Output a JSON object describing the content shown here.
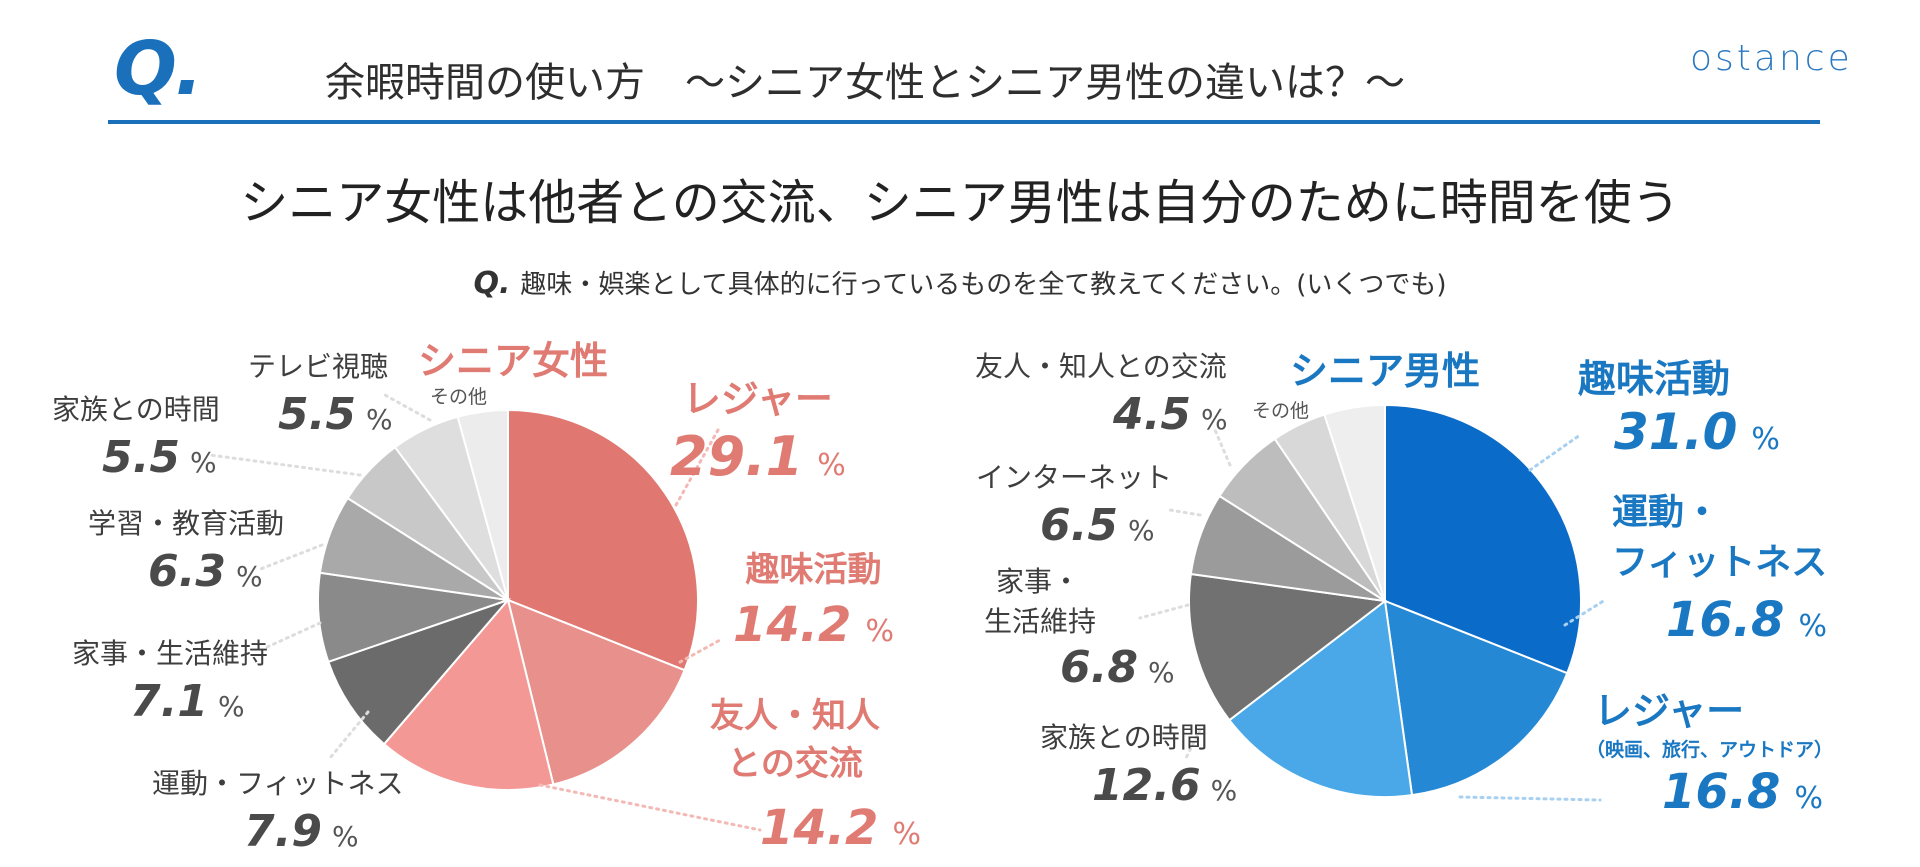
{
  "header": {
    "q_mark": "Q.",
    "title": "余暇時間の使い方　〜シニア女性とシニア男性の違いは？〜",
    "logo": "ostance"
  },
  "headline": "シニア女性は他者との交流、シニア男性は自分のために時間を使う",
  "question": {
    "q_mark": "Q.",
    "text": "趣味・娯楽として具体的に行っているものを全て教えてください。(いくつでも)"
  },
  "colors": {
    "accent_blue": "#1a70bb",
    "female_red": "#e07b74",
    "male_blue": "#1a78c2",
    "gray_text": "#4a4a4a"
  },
  "chart_data": [
    {
      "type": "pie",
      "title": "シニア女性",
      "unit": "%",
      "slices": [
        {
          "label": "レジャー",
          "value": 29.1,
          "color": "#e07770"
        },
        {
          "label": "趣味活動",
          "value": 14.2,
          "color": "#e8918c"
        },
        {
          "label": "友人・知人との交流",
          "value": 14.2,
          "color": "#f39894"
        },
        {
          "label": "運動・フィットネス",
          "value": 7.9,
          "color": "#6b6b6b"
        },
        {
          "label": "家事・生活維持",
          "value": 7.1,
          "color": "#8a8a8a"
        },
        {
          "label": "学習・教育活動",
          "value": 6.3,
          "color": "#a9a9a9"
        },
        {
          "label": "家族との時間",
          "value": 5.5,
          "color": "#c8c8c8"
        },
        {
          "label": "テレビ視聴",
          "value": 5.5,
          "color": "#dedede"
        },
        {
          "label": "その他",
          "value": 4.0,
          "color": "#ececec"
        }
      ]
    },
    {
      "type": "pie",
      "title": "シニア男性",
      "unit": "%",
      "slices": [
        {
          "label": "趣味活動",
          "value": 31.0,
          "color": "#0a6bc8"
        },
        {
          "label": "運動・フィットネス",
          "value": 16.8,
          "color": "#2488d4"
        },
        {
          "label": "レジャー",
          "value": 16.8,
          "color": "#4aa8e8"
        },
        {
          "label": "家族との時間",
          "value": 12.6,
          "color": "#717171"
        },
        {
          "label": "家事・生活維持",
          "value": 6.8,
          "color": "#9b9b9b"
        },
        {
          "label": "インターネット",
          "value": 6.5,
          "color": "#bdbdbd"
        },
        {
          "label": "友人・知人との交流",
          "value": 4.5,
          "color": "#d8d8d8"
        },
        {
          "label": "その他",
          "value": 5.0,
          "color": "#eeeeee"
        }
      ]
    }
  ],
  "labels": {
    "female": {
      "series": "シニア女性",
      "leisure": {
        "name": "レジャー",
        "value": "29.1",
        "unit": "%"
      },
      "hobby": {
        "name": "趣味活動",
        "value": "14.2",
        "unit": "%"
      },
      "friends": {
        "name_1": "友人・知人",
        "name_2": "との交流",
        "value": "14.2",
        "unit": "%"
      },
      "exercise": {
        "name": "運動・フィットネス",
        "value": "7.9",
        "unit": "%"
      },
      "housework": {
        "name": "家事・生活維持",
        "value": "7.1",
        "unit": "%"
      },
      "learning": {
        "name": "学習・教育活動",
        "value": "6.3",
        "unit": "%"
      },
      "family": {
        "name": "家族との時間",
        "value": "5.5",
        "unit": "%"
      },
      "tv": {
        "name": "テレビ視聴",
        "value": "5.5",
        "unit": "%"
      },
      "other": {
        "name": "その他"
      }
    },
    "male": {
      "series": "シニア男性",
      "hobby": {
        "name": "趣味活動",
        "value": "31.0",
        "unit": "%"
      },
      "exercise": {
        "name_1": "運動・",
        "name_2": "フィットネス",
        "value": "16.8",
        "unit": "%"
      },
      "leisure": {
        "name": "レジャー",
        "note": "（映画、旅行、アウトドア）",
        "value": "16.8",
        "unit": "%"
      },
      "family": {
        "name": "家族との時間",
        "value": "12.6",
        "unit": "%"
      },
      "housework": {
        "name_1": "家事・",
        "name_2": "生活維持",
        "value": "6.8",
        "unit": "%"
      },
      "internet": {
        "name": "インターネット",
        "value": "6.5",
        "unit": "%"
      },
      "friends": {
        "name": "友人・知人との交流",
        "value": "4.5",
        "unit": "%"
      },
      "other": {
        "name": "その他"
      }
    }
  }
}
